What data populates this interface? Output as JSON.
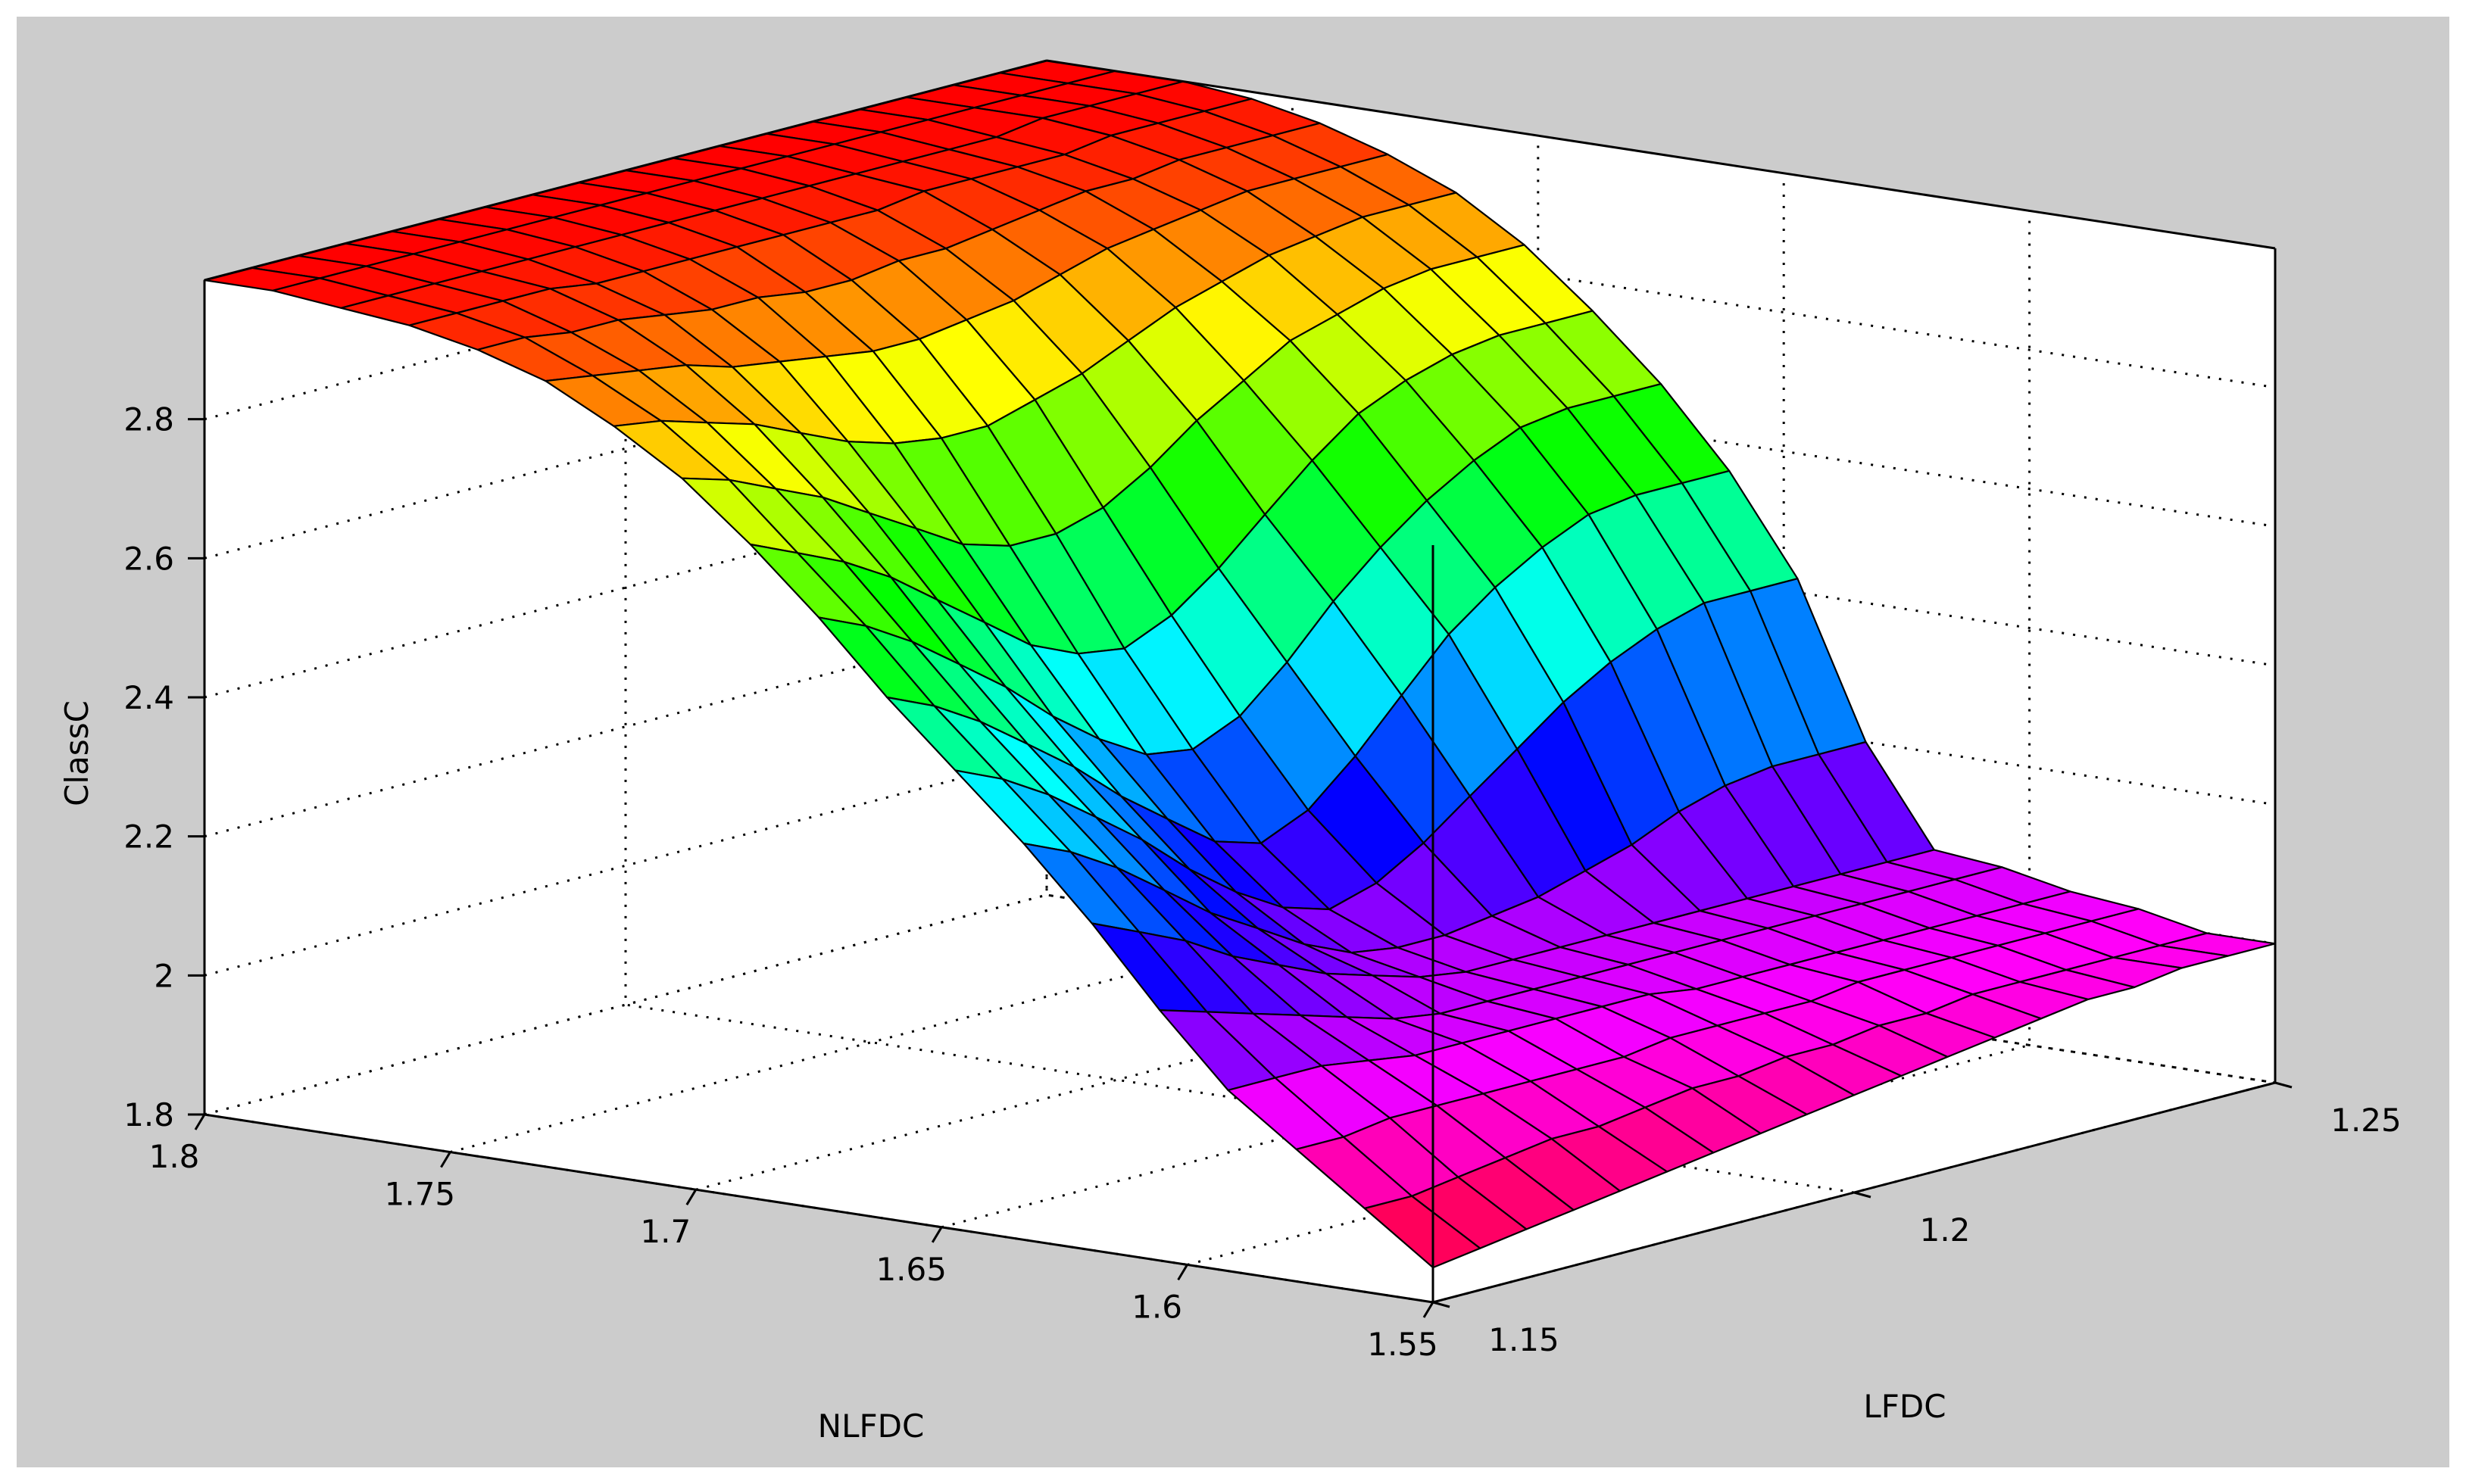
{
  "chart_data": {
    "type": "surface",
    "title": "",
    "xlabel": "LFDC",
    "ylabel": "NLFDC",
    "zlabel": "ClassC",
    "xlim": [
      1.15,
      1.25
    ],
    "ylim": [
      1.55,
      1.8
    ],
    "zlim": [
      1.8,
      3.0
    ],
    "x_ticks": [
      "1.15",
      "1.2",
      "1.25"
    ],
    "y_ticks": [
      "1.55",
      "1.6",
      "1.65",
      "1.7",
      "1.75",
      "1.8"
    ],
    "z_ticks": [
      "1.8",
      "2",
      "2.2",
      "2.4",
      "2.6",
      "2.8"
    ],
    "grid": true,
    "colormap": "hsv",
    "x": [
      1.15,
      1.1556,
      1.1611,
      1.1667,
      1.1722,
      1.1778,
      1.1833,
      1.1889,
      1.1944,
      1.2,
      1.2056,
      1.2111,
      1.2167,
      1.2222,
      1.2278,
      1.2333,
      1.2389,
      1.2444,
      1.25
    ],
    "y": [
      1.55,
      1.5639,
      1.5778,
      1.5917,
      1.6056,
      1.6194,
      1.6333,
      1.6472,
      1.6611,
      1.675,
      1.6889,
      1.7028,
      1.7167,
      1.7306,
      1.7444,
      1.7583,
      1.7722,
      1.7861,
      1.8
    ],
    "z": [
      [
        1.85,
        1.86,
        1.87,
        1.88,
        1.89,
        1.9,
        1.91,
        1.92,
        1.93,
        1.94,
        1.95,
        1.96,
        1.97,
        1.98,
        1.99,
        1.99,
        2.0,
        2.0,
        2.0
      ],
      [
        1.92,
        1.92,
        1.93,
        1.94,
        1.95,
        1.95,
        1.96,
        1.97,
        1.97,
        1.98,
        1.98,
        1.99,
        1.99,
        2.0,
        2.0,
        2.0,
        2.0,
        2.0,
        2.0
      ],
      [
        1.99,
        1.99,
        2.0,
        2.0,
        2.0,
        2.0,
        2.0,
        2.0,
        2.01,
        2.01,
        2.01,
        2.01,
        2.02,
        2.02,
        2.02,
        2.02,
        2.02,
        2.02,
        2.02
      ],
      [
        2.06,
        2.06,
        2.06,
        2.05,
        2.04,
        2.04,
        2.04,
        2.04,
        2.04,
        2.04,
        2.03,
        2.03,
        2.03,
        2.03,
        2.03,
        2.03,
        2.03,
        2.03,
        2.03
      ],
      [
        2.16,
        2.14,
        2.12,
        2.1,
        2.08,
        2.06,
        2.05,
        2.05,
        2.05,
        2.05,
        2.05,
        2.05,
        2.05,
        2.05,
        2.05,
        2.05,
        2.05,
        2.05,
        2.05
      ],
      [
        2.27,
        2.24,
        2.21,
        2.17,
        2.14,
        2.11,
        2.09,
        2.07,
        2.06,
        2.06,
        2.06,
        2.06,
        2.06,
        2.06,
        2.06,
        2.06,
        2.06,
        2.06,
        2.06
      ],
      [
        2.37,
        2.34,
        2.3,
        2.25,
        2.2,
        2.16,
        2.12,
        2.09,
        2.08,
        2.08,
        2.09,
        2.1,
        2.12,
        2.14,
        2.17,
        2.19,
        2.2,
        2.2,
        2.2
      ],
      [
        2.46,
        2.43,
        2.39,
        2.34,
        2.29,
        2.23,
        2.18,
        2.14,
        2.12,
        2.14,
        2.18,
        2.23,
        2.28,
        2.33,
        2.37,
        2.4,
        2.42,
        2.42,
        2.42
      ],
      [
        2.55,
        2.52,
        2.48,
        2.43,
        2.38,
        2.32,
        2.27,
        2.22,
        2.2,
        2.23,
        2.29,
        2.36,
        2.43,
        2.48,
        2.52,
        2.55,
        2.56,
        2.56,
        2.56
      ],
      [
        2.65,
        2.62,
        2.58,
        2.53,
        2.48,
        2.42,
        2.37,
        2.33,
        2.32,
        2.35,
        2.41,
        2.48,
        2.54,
        2.59,
        2.63,
        2.66,
        2.67,
        2.67,
        2.67
      ],
      [
        2.74,
        2.71,
        2.68,
        2.64,
        2.59,
        2.54,
        2.49,
        2.46,
        2.45,
        2.48,
        2.53,
        2.59,
        2.65,
        2.7,
        2.73,
        2.75,
        2.76,
        2.76,
        2.76
      ],
      [
        2.82,
        2.8,
        2.77,
        2.74,
        2.7,
        2.66,
        2.62,
        2.6,
        2.6,
        2.62,
        2.66,
        2.71,
        2.75,
        2.79,
        2.81,
        2.83,
        2.84,
        2.84,
        2.84
      ],
      [
        2.88,
        2.87,
        2.85,
        2.83,
        2.8,
        2.77,
        2.75,
        2.74,
        2.74,
        2.76,
        2.78,
        2.81,
        2.84,
        2.86,
        2.88,
        2.89,
        2.9,
        2.9,
        2.9
      ],
      [
        2.93,
        2.92,
        2.91,
        2.9,
        2.88,
        2.87,
        2.86,
        2.85,
        2.85,
        2.86,
        2.87,
        2.89,
        2.91,
        2.92,
        2.93,
        2.94,
        2.94,
        2.94,
        2.94
      ],
      [
        2.96,
        2.96,
        2.95,
        2.95,
        2.94,
        2.93,
        2.93,
        2.92,
        2.92,
        2.93,
        2.93,
        2.94,
        2.95,
        2.96,
        2.96,
        2.97,
        2.97,
        2.97,
        2.97
      ],
      [
        2.98,
        2.98,
        2.98,
        2.98,
        2.97,
        2.97,
        2.97,
        2.97,
        2.97,
        2.97,
        2.97,
        2.98,
        2.98,
        2.98,
        2.98,
        2.99,
        2.99,
        2.99,
        2.99
      ],
      [
        2.99,
        2.99,
        2.99,
        2.99,
        2.99,
        2.99,
        2.99,
        2.99,
        2.99,
        2.99,
        2.99,
        2.99,
        2.99,
        2.99,
        2.99,
        3.0,
        3.0,
        3.0,
        3.0
      ],
      [
        3.0,
        3.0,
        3.0,
        3.0,
        3.0,
        3.0,
        3.0,
        3.0,
        3.0,
        3.0,
        3.0,
        3.0,
        3.0,
        3.0,
        3.0,
        3.0,
        3.0,
        3.0,
        3.0
      ],
      [
        3.0,
        3.0,
        3.0,
        3.0,
        3.0,
        3.0,
        3.0,
        3.0,
        3.0,
        3.0,
        3.0,
        3.0,
        3.0,
        3.0,
        3.0,
        3.0,
        3.0,
        3.0,
        3.0
      ]
    ]
  }
}
